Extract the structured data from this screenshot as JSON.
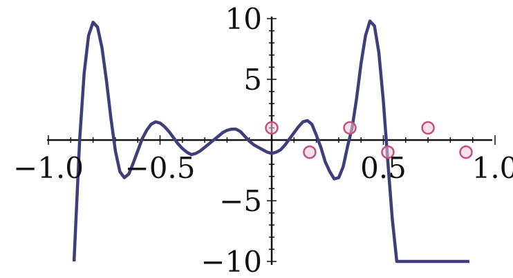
{
  "chart_data": {
    "type": "line",
    "xlim": [
      -1.0,
      1.0
    ],
    "ylim": [
      -10,
      10
    ],
    "x_ticks": [
      -1.0,
      -0.5,
      0.5,
      1.0
    ],
    "y_ticks": [
      -10,
      -5,
      5,
      10
    ],
    "x_tick_labels": [
      "−1.0",
      "−0.5",
      "0.5",
      "1.0"
    ],
    "y_tick_labels": [
      "−10",
      "−5",
      "5",
      "10"
    ],
    "grid": false,
    "series": [
      {
        "type": "line",
        "color": "#3e3f7a",
        "x": [
          -0.885,
          -0.86,
          -0.84,
          -0.82,
          -0.8,
          -0.78,
          -0.76,
          -0.74,
          -0.72,
          -0.7,
          -0.68,
          -0.66,
          -0.64,
          -0.62,
          -0.6,
          -0.58,
          -0.56,
          -0.54,
          -0.52,
          -0.5,
          -0.48,
          -0.46,
          -0.44,
          -0.42,
          -0.4,
          -0.38,
          -0.36,
          -0.34,
          -0.32,
          -0.3,
          -0.28,
          -0.26,
          -0.24,
          -0.22,
          -0.2,
          -0.18,
          -0.16,
          -0.14,
          -0.12,
          -0.1,
          -0.08,
          -0.06,
          -0.04,
          -0.02,
          0.0,
          0.02,
          0.04,
          0.06,
          0.08,
          0.1,
          0.12,
          0.14,
          0.16,
          0.18,
          0.2,
          0.22,
          0.24,
          0.26,
          0.28,
          0.3,
          0.32,
          0.34,
          0.36,
          0.38,
          0.4,
          0.42,
          0.44,
          0.46,
          0.48,
          0.5,
          0.52,
          0.54,
          0.56,
          0.58,
          0.6,
          0.62,
          0.64,
          0.66,
          0.68,
          0.7,
          0.72,
          0.74,
          0.76,
          0.78,
          0.8,
          0.82,
          0.84,
          0.86,
          0.885
        ],
        "y": [
          -10.0,
          0.0,
          5.5,
          8.6,
          9.7,
          9.3,
          7.6,
          4.9,
          1.8,
          -0.9,
          -2.6,
          -3.1,
          -2.8,
          -1.9,
          -0.9,
          0.1,
          0.8,
          1.3,
          1.5,
          1.4,
          1.1,
          0.7,
          0.2,
          -0.3,
          -0.7,
          -1.0,
          -1.2,
          -1.1,
          -0.9,
          -0.6,
          -0.3,
          0.0,
          0.3,
          0.6,
          0.8,
          0.9,
          0.9,
          0.7,
          0.3,
          -0.1,
          -0.4,
          -0.6,
          -0.8,
          -1.0,
          -1.1,
          -1.0,
          -0.8,
          -0.4,
          0.1,
          0.6,
          1.1,
          1.5,
          1.6,
          1.3,
          0.4,
          -0.6,
          -1.8,
          -2.6,
          -3.2,
          -3.1,
          -2.2,
          -0.5,
          1.0,
          3.4,
          6.3,
          8.6,
          9.8,
          9.4,
          7.2,
          3.2,
          -1.8,
          -6.5,
          -10.0,
          -10.0,
          -10.0,
          -10.0,
          -10.0,
          -10.0,
          -10.0,
          -10.0,
          -10.0,
          -10.0,
          -10.0,
          -10.0,
          -10.0,
          -10.0,
          -10.0,
          -10.0,
          -10.0
        ]
      }
    ],
    "points": {
      "x": [
        0.0,
        0.17,
        0.35,
        0.52,
        0.7,
        0.87
      ],
      "y": [
        1.0,
        -1.0,
        1.0,
        -1.0,
        1.0,
        -1.0
      ],
      "color": "#c0507e"
    }
  }
}
